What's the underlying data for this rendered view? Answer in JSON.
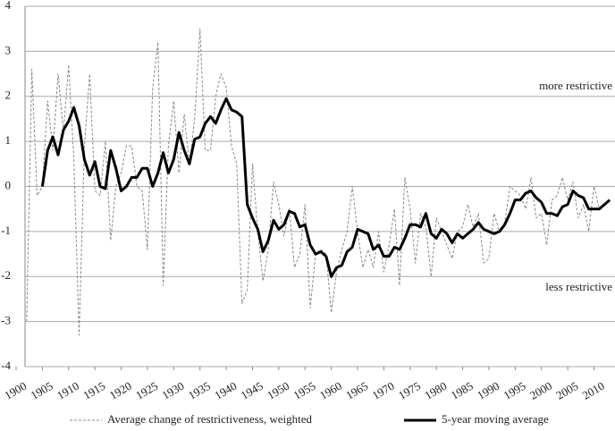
{
  "chart_data": {
    "type": "line",
    "annotations": [
      "more restrictive",
      "less restrictive"
    ],
    "x": [
      1902,
      1903,
      1904,
      1905,
      1906,
      1907,
      1908,
      1909,
      1910,
      1911,
      1912,
      1913,
      1914,
      1915,
      1916,
      1917,
      1918,
      1919,
      1920,
      1921,
      1922,
      1923,
      1924,
      1925,
      1926,
      1927,
      1928,
      1929,
      1930,
      1931,
      1932,
      1933,
      1934,
      1935,
      1936,
      1937,
      1938,
      1939,
      1940,
      1941,
      1942,
      1943,
      1944,
      1945,
      1946,
      1947,
      1948,
      1949,
      1950,
      1951,
      1952,
      1953,
      1954,
      1955,
      1956,
      1957,
      1958,
      1959,
      1960,
      1961,
      1962,
      1963,
      1964,
      1965,
      1966,
      1967,
      1968,
      1969,
      1970,
      1971,
      1972,
      1973,
      1974,
      1975,
      1976,
      1977,
      1978,
      1979,
      1980,
      1981,
      1982,
      1983,
      1984,
      1985,
      1986,
      1987,
      1988,
      1989,
      1990,
      1991,
      1992,
      1993,
      1994,
      1995,
      1996,
      1997,
      1998,
      1999,
      2000,
      2001,
      2002,
      2003,
      2004,
      2005,
      2006,
      2007,
      2008,
      2009,
      2010,
      2011,
      2012,
      2013
    ],
    "series": [
      {
        "name": "Average change of restrictiveness, weighted",
        "color": "#888888",
        "dashed": true,
        "values": [
          -3,
          2.6,
          -0.2,
          0,
          1.9,
          0.8,
          2.5,
          1.2,
          2.7,
          0.6,
          -3.3,
          0.9,
          2.5,
          -0.1,
          -0.2,
          1.0,
          -1.2,
          0.0,
          0.3,
          0.9,
          0.9,
          0.0,
          -0.1,
          -1.4,
          2.2,
          3.2,
          -2.2,
          0.9,
          1.9,
          0.3,
          1.6,
          0.5,
          1.5,
          3.5,
          0.8,
          0.8,
          2.0,
          2.5,
          2.2,
          0.9,
          0.5,
          -2.6,
          -2.3,
          0.5,
          -1.0,
          -2.1,
          -1.4,
          0.1,
          -0.4,
          -1.1,
          -0.5,
          -1.8,
          -1.5,
          -0.4,
          -2.7,
          -1.5,
          -1.4,
          -1.5,
          -2.8,
          -1.9,
          -1.4,
          -1.0,
          0.0,
          -1.0,
          -1.8,
          -1.4,
          -1.8,
          -1.0,
          -1.9,
          -1.3,
          -0.5,
          -2.2,
          0.2,
          -0.5,
          -1.7,
          -0.6,
          -0.9,
          -2.0,
          -0.7,
          -1.0,
          -1.3,
          -1.6,
          -1.0,
          -0.9,
          -0.4,
          -0.9,
          -0.6,
          -1.7,
          -1.6,
          -0.6,
          -1.0,
          -0.8,
          0.0,
          -0.1,
          -0.2,
          -0.5,
          0.2,
          -0.7,
          -0.6,
          -1.3,
          -0.3,
          -0.2,
          0.2,
          -0.3,
          0.1,
          -0.7,
          -0.4,
          -1.0,
          0.0,
          -0.5,
          -0.4,
          -0.3
        ]
      },
      {
        "name": "5-year moving average",
        "color": "#000000",
        "dashed": false,
        "values": [
          null,
          null,
          null,
          0.0,
          0.8,
          1.1,
          0.7,
          1.25,
          1.45,
          1.75,
          1.35,
          0.6,
          0.25,
          0.55,
          0.0,
          -0.05,
          0.8,
          0.4,
          -0.1,
          0.0,
          0.2,
          0.2,
          0.4,
          0.4,
          0.0,
          0.3,
          0.75,
          0.3,
          0.6,
          1.2,
          0.8,
          0.5,
          1.05,
          1.1,
          1.4,
          1.55,
          1.4,
          1.7,
          1.95,
          1.7,
          1.65,
          1.55,
          -0.4,
          -0.7,
          -0.95,
          -1.45,
          -1.2,
          -0.75,
          -0.95,
          -0.85,
          -0.55,
          -0.6,
          -0.9,
          -0.85,
          -1.3,
          -1.5,
          -1.45,
          -1.55,
          -2.0,
          -1.8,
          -1.75,
          -1.45,
          -1.35,
          -0.95,
          -1.0,
          -1.05,
          -1.4,
          -1.3,
          -1.55,
          -1.55,
          -1.35,
          -1.4,
          -1.15,
          -0.85,
          -0.85,
          -0.9,
          -0.6,
          -1.05,
          -1.15,
          -0.95,
          -1.05,
          -1.25,
          -1.05,
          -1.15,
          -1.05,
          -0.95,
          -0.8,
          -0.95,
          -1.0,
          -1.05,
          -1.0,
          -0.85,
          -0.6,
          -0.3,
          -0.3,
          -0.15,
          -0.1,
          -0.25,
          -0.35,
          -0.6,
          -0.6,
          -0.65,
          -0.45,
          -0.4,
          -0.1,
          -0.2,
          -0.25,
          -0.5,
          -0.5,
          -0.5,
          -0.4,
          -0.3
        ]
      }
    ],
    "xlim": [
      1900,
      2014
    ],
    "xticks": [
      1900,
      1905,
      1910,
      1915,
      1920,
      1925,
      1930,
      1935,
      1940,
      1945,
      1950,
      1955,
      1960,
      1965,
      1970,
      1975,
      1980,
      1985,
      1990,
      1995,
      2000,
      2005,
      2010
    ],
    "ylim": [
      -4,
      4
    ],
    "yticks": [
      -4,
      -3,
      -2,
      -1,
      0,
      1,
      2,
      3,
      4
    ],
    "grid": true,
    "legend": "bottom"
  }
}
